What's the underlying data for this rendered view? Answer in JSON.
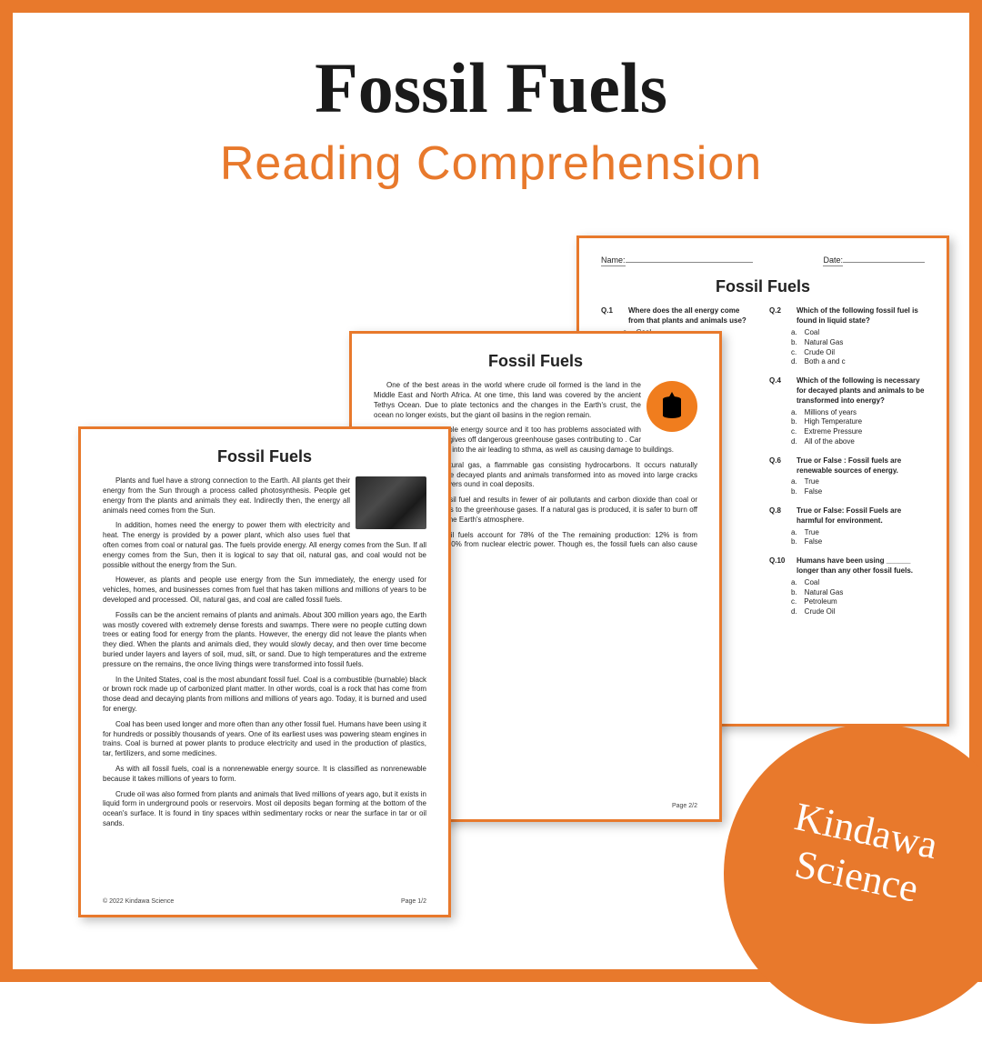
{
  "colors": {
    "accent": "#e8792c",
    "text": "#1a1a1a",
    "page_border": "#e8792c",
    "shadow": "rgba(0,0,0,0.25)",
    "badge_bg": "#e8792c",
    "badge_text": "#ffffff"
  },
  "headline": "Fossil Fuels",
  "subhead": "Reading  Comprehension",
  "badge": {
    "line1": "Kindawa",
    "line2": "Science"
  },
  "page_title": "Fossil Fuels",
  "copyright": "© 2022 Kindawa Science",
  "page1": {
    "pagenum": "Page 1/2",
    "paras": [
      "Plants and fuel have a strong connection to the Earth. All plants get their energy from the Sun through a process called photosynthesis. People get energy from the plants and animals they eat. Indirectly then, the energy all animals need comes from the Sun.",
      "In addition, homes need the energy to power them with electricity and heat. The energy is provided by a power plant, which also uses fuel that often comes from coal or natural gas. The fuels provide energy. All energy comes from the Sun. If all energy comes from the Sun, then it is logical to say that oil, natural gas, and coal would not be possible without the energy from the Sun.",
      "However, as plants and people use energy from the Sun immediately, the energy used for vehicles, homes, and businesses comes from fuel that has taken millions and millions of years to be developed and processed. Oil, natural gas, and coal are called fossil fuels.",
      "Fossils can be the ancient remains of plants and animals. About 300 million years ago, the Earth was mostly covered with extremely dense forests and swamps. There were no people cutting down trees or eating food for energy from the plants. However, the energy did not leave the plants when they died. When the plants and animals died, they would slowly decay, and then over time become buried under layers and layers of soil, mud, silt, or sand. Due to high temperatures and the extreme pressure on the remains, the once living things were transformed into fossil fuels.",
      "In the United States, coal is the most abundant fossil fuel. Coal is a combustible (burnable) black or brown rock made up of carbonized plant matter. In other words, coal is a rock that has come from those dead and decaying plants from millions and millions of years ago. Today, it is burned and used for energy.",
      "Coal has been used longer and more often than any other fossil fuel. Humans have been using it for hundreds or possibly thousands of years. One of its earliest uses was powering steam engines in trains. Coal is burned at power plants to produce electricity and used in the production of plastics, tar, fertilizers, and some medicines.",
      "As with all fossil fuels, coal is a nonrenewable energy source. It is classified as nonrenewable because it takes millions of years to form.",
      "Crude oil was also formed from plants and animals that lived millions of years ago, but it exists in liquid form in underground pools or reservoirs. Most oil deposits began forming at the bottom of the ocean's surface. It is found in tiny spaces within sedimentary rocks or near the surface in tar or oil sands."
    ]
  },
  "page2": {
    "pagenum": "Page 2/2",
    "paras": [
      "One of the best areas in the world where crude oil formed is the land in the Middle East and North Africa. At one time, this land was covered by the ancient Tethys Ocean. Due to plate tectonics and the changes in the Earth's crust, the ocean no longer exists, but the giant oil basins in the region remain.",
      "Oil is a nonrenewable energy source and it too has problems associated with it. When it is burned, it gives off dangerous greenhouse gases contributing to . Car exhausts release gases into the air leading to sthma, as well as causing damage to buildings.",
      "e fossil fuel is natural gas, a flammable gas consisting hydrocarbons. It occurs naturally underground in the ; the decayed plants and animals transformed into as moved into large cracks and spaces between layers ound in coal deposits.",
      "a clean-burning fossil fuel and results in fewer of air pollutants and carbon dioxide than coal or oil. If atmosphere it adds to the greenhouse gases. If a natural gas is produced, it is safer to burn off the gas to escape into the Earth's atmosphere.",
      "e three major fossil fuels account for 78% of the The remaining production: 12% is from renewable power and 10% from nuclear electric power. Though es, the fossil fuels can also cause problems for the"
    ]
  },
  "page3": {
    "name_label": "Name:",
    "date_label": "Date:",
    "questions_left": [
      {
        "n": "Q.1",
        "text": "Where does the all energy come from that plants and animals use?",
        "opts": [
          "Coal",
          "Natural Gas",
          "Oil",
          "The Sun"
        ]
      },
      {
        "n": "",
        "text": "ossil fuels",
        "opts": []
      },
      {
        "n": "",
        "text": "rom the s of",
        "opts": []
      },
      {
        "n": "",
        "text": "els ______",
        "opts": []
      },
      {
        "n": "",
        "text": "s not an",
        "opts": []
      }
    ],
    "questions_right": [
      {
        "n": "Q.2",
        "text": "Which of the following fossil fuel is found in liquid state?",
        "opts": [
          "Coal",
          "Natural Gas",
          "Crude Oil",
          "Both a and c"
        ]
      },
      {
        "n": "Q.4",
        "text": "Which of the following is necessary for decayed plants and animals to be transformed into energy?",
        "opts": [
          "Millions of years",
          "High Temperature",
          "Extreme Pressure",
          "All of the above"
        ]
      },
      {
        "n": "Q.6",
        "text": "True or False : Fossil fuels are renewable sources of energy.",
        "opts": [
          "True",
          "False"
        ]
      },
      {
        "n": "Q.8",
        "text": "True or False: Fossil Fuels are harmful for environment.",
        "opts": [
          "True",
          "False"
        ]
      },
      {
        "n": "Q.10",
        "text": "Humans have been using ______ longer than any other fossil fuels.",
        "opts": [
          "Coal",
          "Natural Gas",
          "Petroleum",
          "Crude Oil"
        ]
      }
    ]
  }
}
